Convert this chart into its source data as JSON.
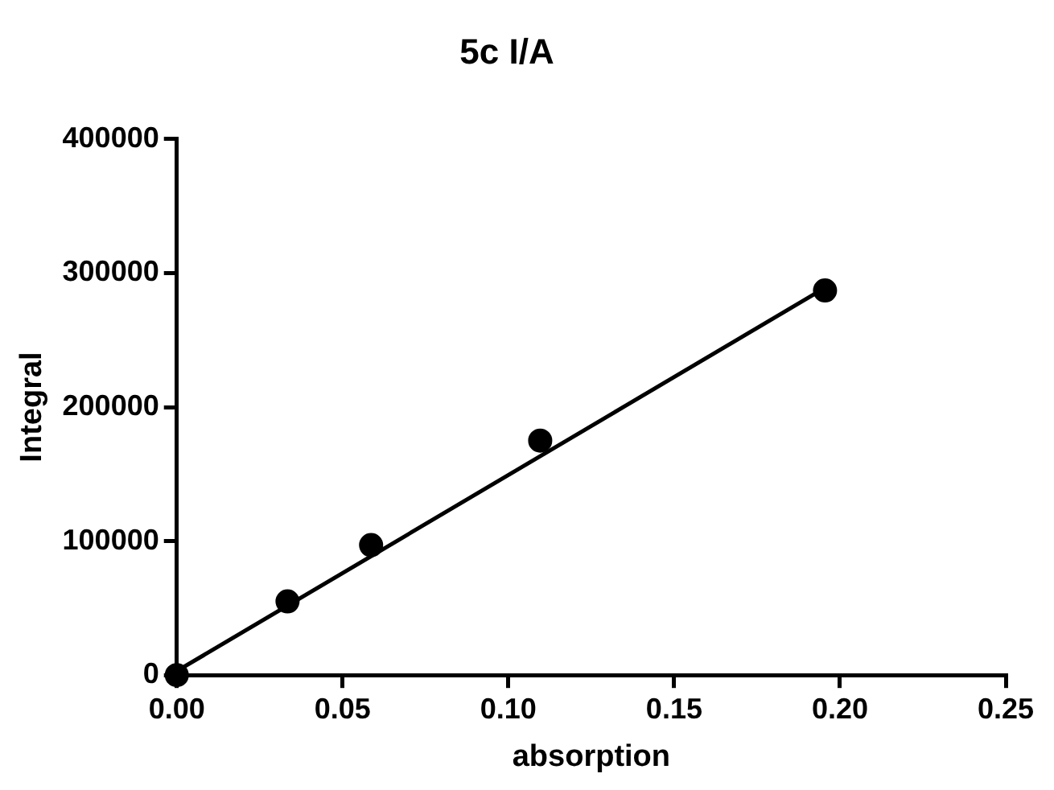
{
  "chart_data": {
    "type": "scatter",
    "title": "5c I/A",
    "xlabel": "absorption",
    "ylabel": "Integral",
    "series": [
      {
        "color": "#000000",
        "x": [
          0,
          0.0334,
          0.0586,
          0.1096,
          0.1955
        ],
        "values": [
          0,
          55000,
          97000,
          175000,
          287000
        ],
        "marker": "circle"
      },
      {
        "type": "line",
        "color": "#000000",
        "x": [
          0,
          0.1955
        ],
        "values": [
          3000,
          289000
        ],
        "marker": "none",
        "line_style": "solid"
      }
    ],
    "xlim": [
      0,
      0.25
    ],
    "xticks": [
      {
        "value": 0,
        "label": "0.00"
      },
      {
        "value": 0.05,
        "label": "0.05"
      },
      {
        "value": 0.1,
        "label": "0.10"
      },
      {
        "value": 0.15,
        "label": "0.15"
      },
      {
        "value": 0.2,
        "label": "0.20"
      },
      {
        "value": 0.25,
        "label": "0.25"
      }
    ],
    "ylim": [
      0,
      400000
    ],
    "yticks": [
      0,
      100000,
      200000,
      300000,
      400000
    ],
    "grid": false,
    "legend": false
  }
}
